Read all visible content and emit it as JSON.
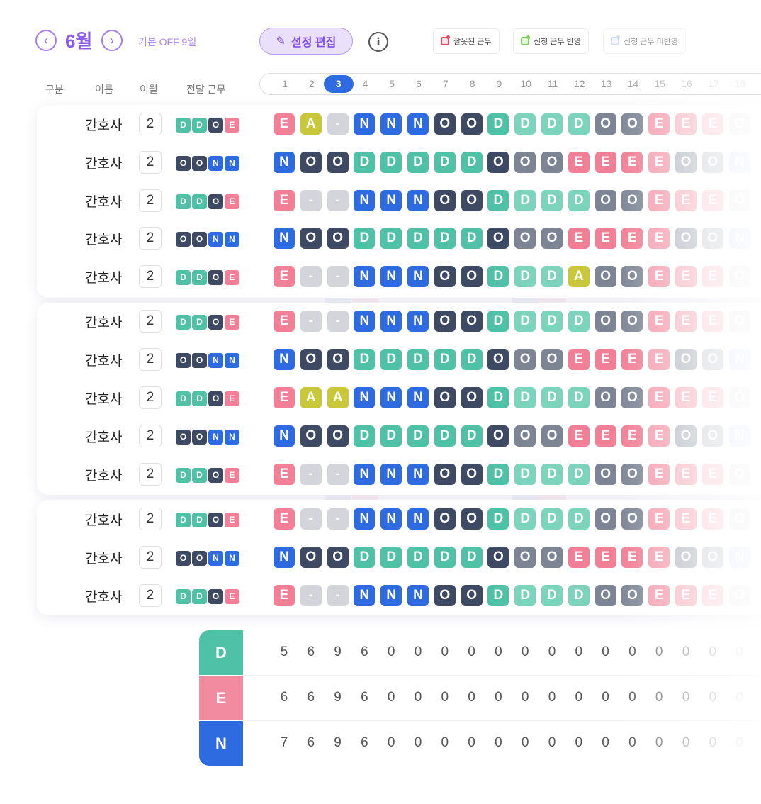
{
  "header": {
    "month": "6월",
    "base_off": "기본 OFF 9일",
    "edit_button": "설정 편집",
    "info_icon": "i",
    "legend": [
      {
        "label": "잘못된 근무",
        "color": "#e8455b",
        "fill": "#fde5ea"
      },
      {
        "label": "신청 근무 반영",
        "color": "#7bd35c",
        "fill": "#e6f7df"
      },
      {
        "label": "신청 근무 미반영",
        "color": "#a9bdf3",
        "fill": "#eef2fd"
      }
    ]
  },
  "columns": [
    "구분",
    "이름",
    "이월",
    "전달 근무"
  ],
  "days": [
    "1",
    "2",
    "3",
    "4",
    "5",
    "6",
    "7",
    "8",
    "9",
    "10",
    "11",
    "12",
    "13",
    "14",
    "15",
    "16",
    "17",
    "18"
  ],
  "selected_day": "3",
  "colors": {
    "D": "#4fc1a6",
    "E": "#f17f95",
    "N": "#2f6be0",
    "O": "#3e4a63",
    "A": "#c9c73a",
    "-": "#d3d5db",
    "Dlight": "#7dd4bd",
    "Olight": "#7d8595"
  },
  "groups": [
    {
      "rows": [
        {
          "name": "간호사",
          "carry": "2",
          "prev": [
            "D",
            "D",
            "O",
            "E"
          ],
          "shifts": [
            "E",
            "A",
            "-",
            "N",
            "N",
            "N",
            "O",
            "O",
            "D",
            "D",
            "D",
            "D",
            "O",
            "O",
            "E",
            "E",
            "E",
            "O"
          ]
        },
        {
          "name": "간호사",
          "carry": "2",
          "prev": [
            "O",
            "O",
            "N",
            "N"
          ],
          "shifts": [
            "N",
            "O",
            "O",
            "D",
            "D",
            "D",
            "D",
            "D",
            "O",
            "O",
            "O",
            "E",
            "E",
            "E",
            "E",
            "O",
            "O",
            "N"
          ]
        },
        {
          "name": "간호사",
          "carry": "2",
          "prev": [
            "D",
            "D",
            "O",
            "E"
          ],
          "shifts": [
            "E",
            "-",
            "-",
            "N",
            "N",
            "N",
            "O",
            "O",
            "D",
            "D",
            "D",
            "D",
            "O",
            "O",
            "E",
            "E",
            "E",
            "O"
          ]
        },
        {
          "name": "간호사",
          "carry": "2",
          "prev": [
            "O",
            "O",
            "N",
            "N"
          ],
          "shifts": [
            "N",
            "O",
            "O",
            "D",
            "D",
            "D",
            "D",
            "D",
            "O",
            "O",
            "O",
            "E",
            "E",
            "E",
            "E",
            "O",
            "O",
            "N"
          ]
        },
        {
          "name": "간호사",
          "carry": "2",
          "prev": [
            "D",
            "D",
            "O",
            "E"
          ],
          "shifts": [
            "E",
            "-",
            "-",
            "N",
            "N",
            "N",
            "O",
            "O",
            "D",
            "D",
            "D",
            "A",
            "O",
            "O",
            "E",
            "E",
            "E",
            "O"
          ]
        }
      ]
    },
    {
      "rows": [
        {
          "name": "간호사",
          "carry": "2",
          "prev": [
            "D",
            "D",
            "O",
            "E"
          ],
          "shifts": [
            "E",
            "-",
            "-",
            "N",
            "N",
            "N",
            "O",
            "O",
            "D",
            "D",
            "D",
            "D",
            "O",
            "O",
            "E",
            "E",
            "E",
            "O"
          ]
        },
        {
          "name": "간호사",
          "carry": "2",
          "prev": [
            "O",
            "O",
            "N",
            "N"
          ],
          "shifts": [
            "N",
            "O",
            "O",
            "D",
            "D",
            "D",
            "D",
            "D",
            "O",
            "O",
            "O",
            "E",
            "E",
            "E",
            "E",
            "O",
            "O",
            "N"
          ]
        },
        {
          "name": "간호사",
          "carry": "2",
          "prev": [
            "D",
            "D",
            "O",
            "E"
          ],
          "shifts": [
            "E",
            "A",
            "A",
            "N",
            "N",
            "N",
            "O",
            "O",
            "D",
            "D",
            "D",
            "D",
            "O",
            "O",
            "E",
            "E",
            "E",
            "O"
          ]
        },
        {
          "name": "간호사",
          "carry": "2",
          "prev": [
            "O",
            "O",
            "N",
            "N"
          ],
          "shifts": [
            "N",
            "O",
            "O",
            "D",
            "D",
            "D",
            "D",
            "D",
            "O",
            "O",
            "O",
            "E",
            "E",
            "E",
            "E",
            "O",
            "O",
            "N"
          ]
        },
        {
          "name": "간호사",
          "carry": "2",
          "prev": [
            "D",
            "D",
            "O",
            "E"
          ],
          "shifts": [
            "E",
            "-",
            "-",
            "N",
            "N",
            "N",
            "O",
            "O",
            "D",
            "D",
            "D",
            "D",
            "O",
            "O",
            "E",
            "E",
            "E",
            "O"
          ]
        }
      ]
    },
    {
      "rows": [
        {
          "name": "간호사",
          "carry": "2",
          "prev": [
            "D",
            "D",
            "O",
            "E"
          ],
          "shifts": [
            "E",
            "-",
            "-",
            "N",
            "N",
            "N",
            "O",
            "O",
            "D",
            "D",
            "D",
            "D",
            "O",
            "O",
            "E",
            "E",
            "E",
            "O"
          ]
        },
        {
          "name": "간호사",
          "carry": "2",
          "prev": [
            "O",
            "O",
            "N",
            "N"
          ],
          "shifts": [
            "N",
            "O",
            "O",
            "D",
            "D",
            "D",
            "D",
            "D",
            "O",
            "O",
            "O",
            "E",
            "E",
            "E",
            "E",
            "O",
            "O",
            "N"
          ]
        },
        {
          "name": "간호사",
          "carry": "2",
          "prev": [
            "D",
            "D",
            "O",
            "E"
          ],
          "shifts": [
            "E",
            "-",
            "-",
            "N",
            "N",
            "N",
            "O",
            "O",
            "D",
            "D",
            "D",
            "D",
            "O",
            "O",
            "E",
            "E",
            "E",
            "O"
          ]
        }
      ]
    }
  ],
  "counts": [
    {
      "label": "D",
      "color": "#4fc1a6",
      "values": [
        "5",
        "6",
        "9",
        "6",
        "0",
        "0",
        "0",
        "0",
        "0",
        "0",
        "0",
        "0",
        "0",
        "0",
        "0",
        "0",
        "0",
        "0"
      ]
    },
    {
      "label": "E",
      "color": "#f28aa0",
      "values": [
        "6",
        "6",
        "9",
        "6",
        "0",
        "0",
        "0",
        "0",
        "0",
        "0",
        "0",
        "0",
        "0",
        "0",
        "0",
        "0",
        "0",
        "0"
      ]
    },
    {
      "label": "N",
      "color": "#2f6be0",
      "values": [
        "7",
        "6",
        "9",
        "6",
        "0",
        "0",
        "0",
        "0",
        "0",
        "0",
        "0",
        "0",
        "0",
        "0",
        "0",
        "0",
        "0",
        "0"
      ]
    }
  ]
}
